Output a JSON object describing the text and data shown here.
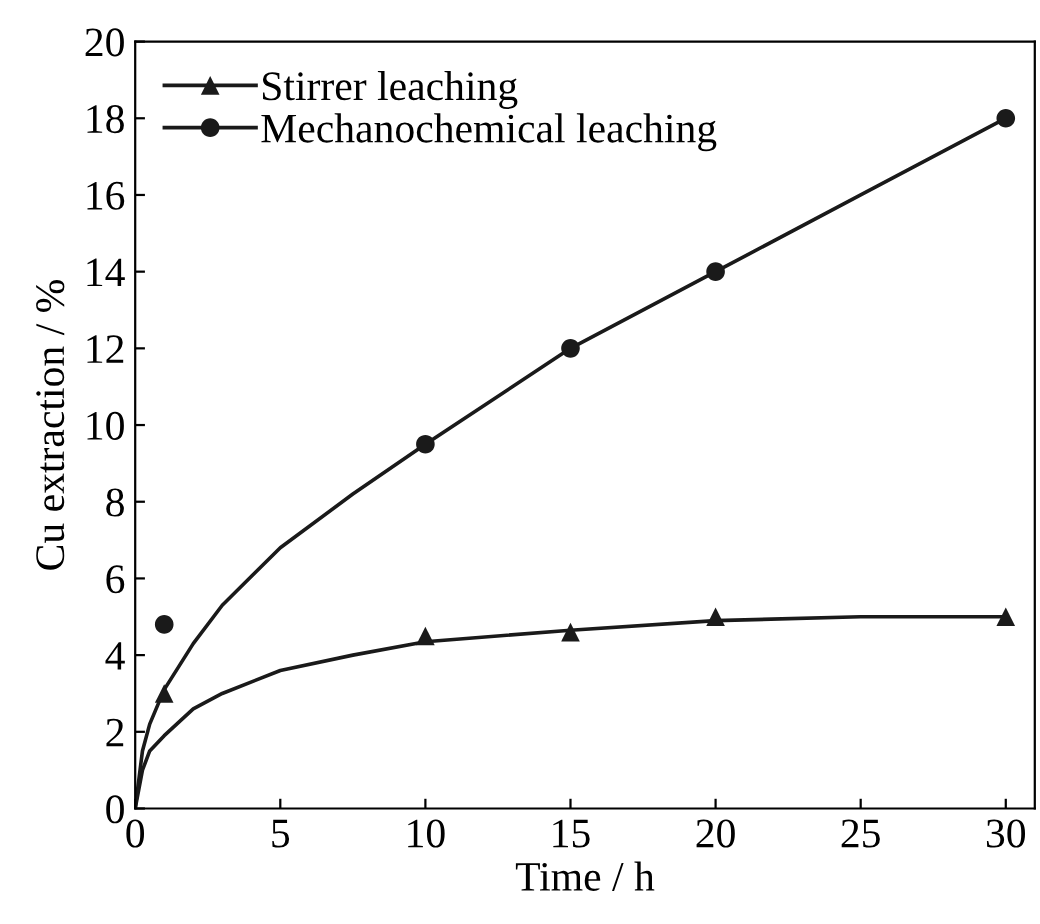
{
  "chart_data": {
    "type": "scatter",
    "xlabel": "Time / h",
    "ylabel": "Cu extraction / %",
    "xlim": [
      0,
      31
    ],
    "ylim": [
      0,
      20
    ],
    "xticks": [
      0,
      5,
      10,
      15,
      20,
      25,
      30
    ],
    "yticks": [
      0,
      2,
      4,
      6,
      8,
      10,
      12,
      14,
      16,
      18,
      20
    ],
    "grid": false,
    "legend": "top left",
    "series": [
      {
        "name": "Stirrer leaching",
        "marker": "triangle",
        "color": "#1a1a1a",
        "x": [
          1,
          10,
          15,
          20,
          30
        ],
        "values": [
          3,
          4.5,
          4.6,
          5,
          5
        ]
      },
      {
        "name": "Mechanochemical leaching",
        "marker": "circle",
        "color": "#1a1a1a",
        "x": [
          1,
          10,
          15,
          20,
          30
        ],
        "values": [
          4.8,
          9.5,
          12,
          14,
          18
        ]
      },
      {
        "type": "line",
        "color": "#1a1a1a",
        "line_style": "solid",
        "x": [
          0,
          0.25,
          0.5,
          1,
          2,
          3,
          5,
          7.5,
          10,
          15,
          20,
          25,
          30
        ],
        "values": [
          0,
          1.0,
          1.5,
          1.9,
          2.6,
          3.0,
          3.6,
          4.0,
          4.35,
          4.65,
          4.9,
          5.0,
          5.0
        ]
      },
      {
        "type": "line",
        "color": "#1a1a1a",
        "line_style": "solid",
        "x": [
          0,
          0.25,
          0.5,
          1,
          2,
          3,
          5,
          7.5,
          10,
          15,
          20,
          25,
          30
        ],
        "values": [
          0,
          1.5,
          2.2,
          3.1,
          4.3,
          5.3,
          6.8,
          8.2,
          9.5,
          12,
          14,
          16,
          18
        ]
      }
    ]
  }
}
